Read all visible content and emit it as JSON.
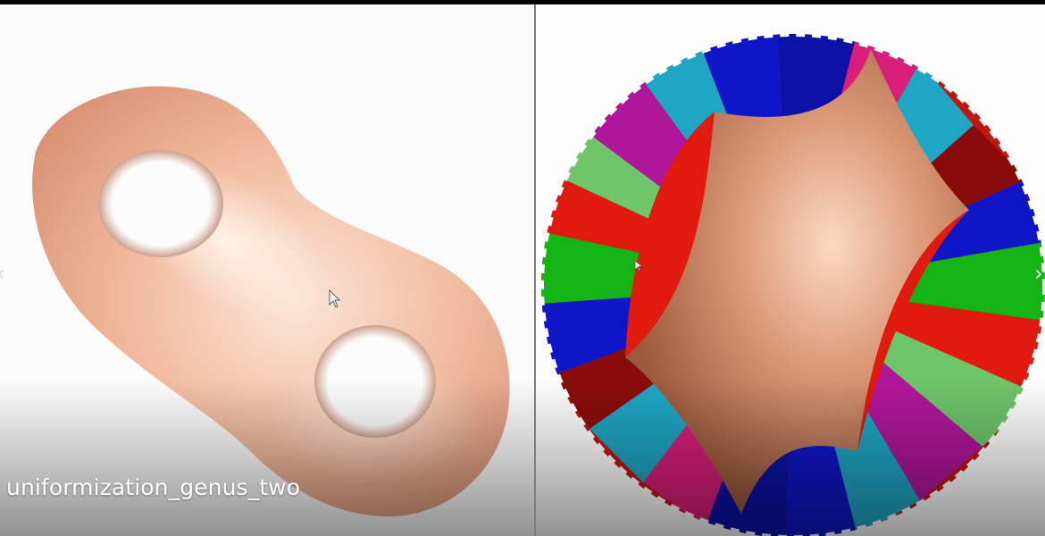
{
  "video": {
    "caption": "uniformization_genus_two",
    "left_view": {
      "model": "genus-two-surface",
      "color": "#f0b69a"
    },
    "right_view": {
      "model": "hyperbolic-disk-tiling",
      "color": "#d89672"
    }
  },
  "controls": {
    "prev_icon": "chevron-left-icon",
    "next_icon": "chevron-right-icon",
    "prev_glyph": "‹",
    "next_glyph": "›"
  },
  "palette": {
    "tile_colors": [
      "#e01a0e",
      "#0f16c8",
      "#14b414",
      "#d81e78",
      "#1ea6c4",
      "#8a0c0a",
      "#6ec56a",
      "#b0169a"
    ]
  }
}
